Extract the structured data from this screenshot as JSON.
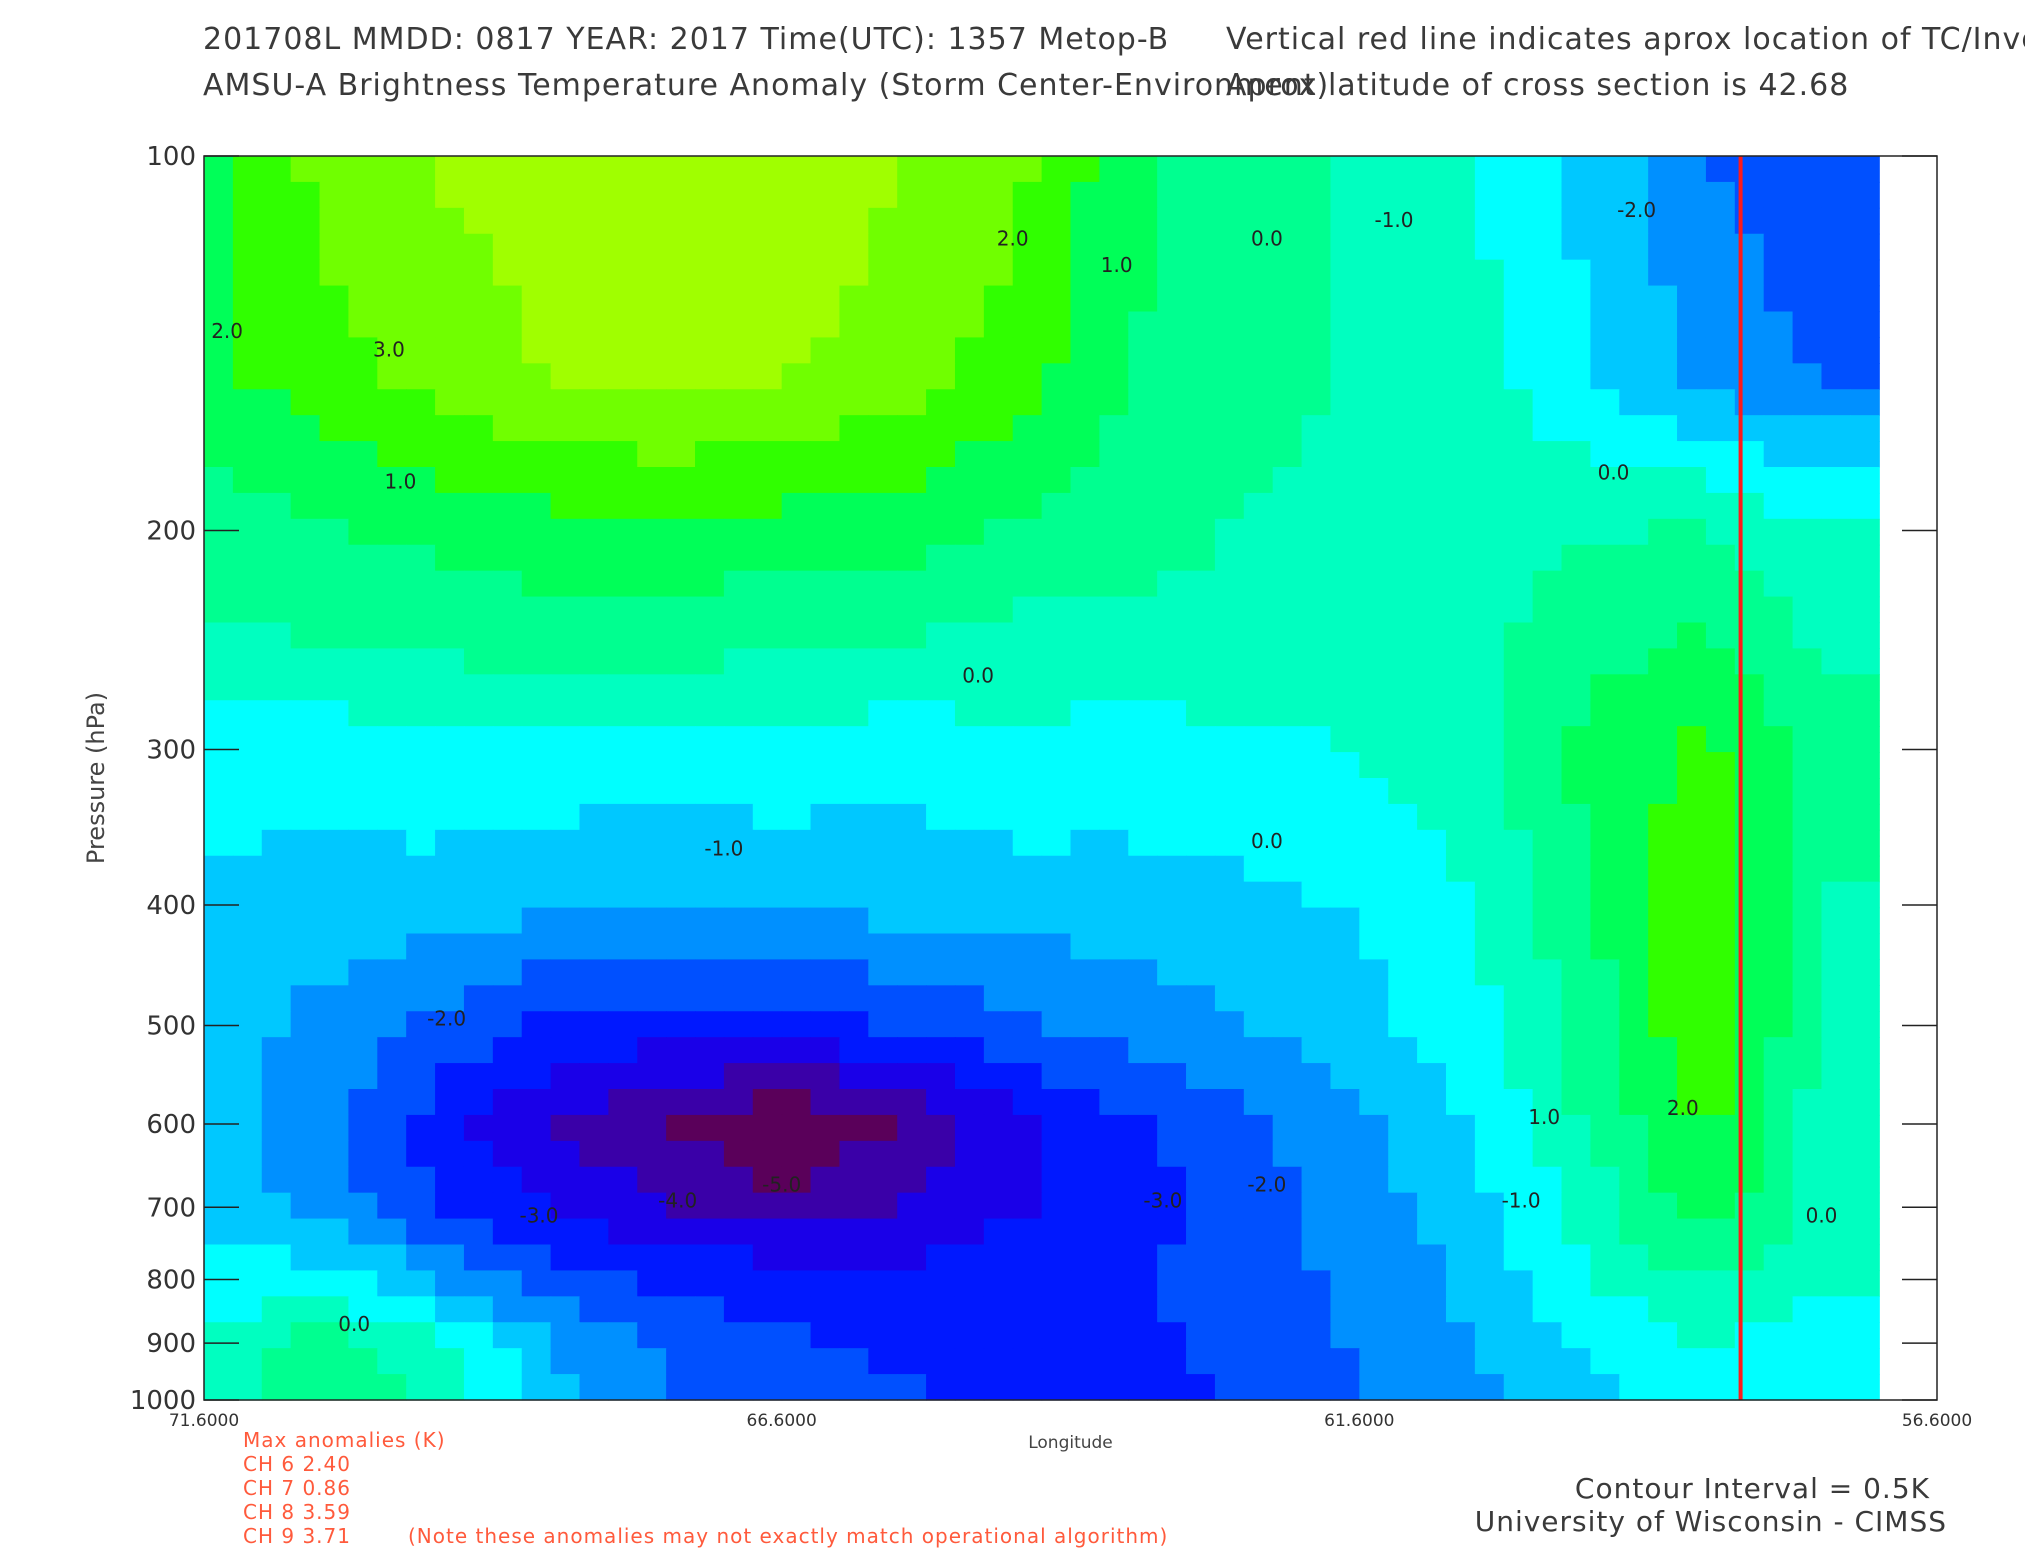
{
  "header": {
    "line1_left": "201708L  MMDD: 0817 YEAR: 2017 Time(UTC): 1357 Metop-B",
    "line2_left": "AMSU-A Brightness Temperature Anomaly (Storm Center-Environment)",
    "line1_right": "Vertical red line indicates aprox location of TC/Invest",
    "line2_right": "Aprox latitude of cross section is 42.68"
  },
  "anomalies": {
    "title": "Max anomalies (K)",
    "rows": [
      "CH 6  2.40",
      "CH 7  0.86",
      "CH 8  3.59",
      "CH 9  3.71"
    ],
    "note": "(Note these anomalies may not exactly match operational algorithm)"
  },
  "footer": {
    "contour_interval": "Contour Interval = 0.5K",
    "credit": "University of Wisconsin - CIMSS"
  },
  "colors": {
    "storm_line": "#ff1a1a",
    "label_orange": "#ff5a3c",
    "levels": [
      "#5a005a",
      "#3a00a8",
      "#1a00e8",
      "#0018ff",
      "#0050ff",
      "#0090ff",
      "#00c8ff",
      "#00ffff",
      "#00ffc0",
      "#00ff90",
      "#00ff58",
      "#30ff00",
      "#70ff00",
      "#a0ff00"
    ]
  },
  "chart_data": {
    "type": "heatmap",
    "title": "AMSU-A Brightness Temperature Anomaly (Storm Center-Environment)",
    "xlabel": "Longitude",
    "ylabel": "Pressure (hPa)",
    "xlim": [
      71.6,
      56.6
    ],
    "ylim": [
      1000,
      100
    ],
    "yscale": "log",
    "x_ticks": [
      "71.6000",
      "66.6000",
      "61.6000",
      "56.6000"
    ],
    "x_tick_values": [
      71.6,
      66.6,
      61.6,
      56.6
    ],
    "y_ticks": [
      "100",
      "200",
      "300",
      "400",
      "500",
      "600",
      "700",
      "800",
      "900",
      "1000"
    ],
    "y_tick_values": [
      100,
      200,
      300,
      400,
      500,
      600,
      700,
      800,
      900,
      1000
    ],
    "contour_interval_K": 0.5,
    "storm_longitude": 58.3,
    "data_xmin_lon": 71.6,
    "data_xmax_lon": 57.1,
    "grid": {
      "lons": [
        71.6,
        70.6,
        69.6,
        68.6,
        67.6,
        66.6,
        65.6,
        64.6,
        63.6,
        62.6,
        61.6,
        60.6,
        59.6,
        58.6,
        57.6
      ],
      "pressures": [
        100,
        150,
        200,
        250,
        300,
        400,
        500,
        600,
        700,
        800,
        900,
        1000
      ],
      "values": [
        [
          1.5,
          2.5,
          3.0,
          3.2,
          3.3,
          3.5,
          3.0,
          2.5,
          1.2,
          0.6,
          0.3,
          -0.3,
          -1.2,
          -2.2,
          -2.8
        ],
        [
          1.5,
          2.0,
          2.6,
          3.0,
          3.2,
          3.0,
          2.6,
          2.0,
          1.0,
          0.5,
          0.3,
          -0.1,
          -0.9,
          -1.8,
          -2.3
        ],
        [
          0.6,
          0.9,
          1.2,
          1.4,
          1.5,
          1.4,
          1.3,
          0.9,
          0.6,
          0.3,
          0.3,
          0.1,
          0.3,
          0.4,
          -0.2
        ],
        [
          0.2,
          0.3,
          0.4,
          0.6,
          0.5,
          0.4,
          0.3,
          0.0,
          0.1,
          0.2,
          0.3,
          0.2,
          0.8,
          1.2,
          0.3
        ],
        [
          -0.8,
          -0.7,
          -0.4,
          -0.5,
          -0.6,
          -0.5,
          -0.7,
          -0.4,
          -0.6,
          -0.5,
          -0.3,
          0.2,
          1.2,
          1.8,
          0.6
        ],
        [
          -1.0,
          -1.2,
          -1.3,
          -1.5,
          -1.6,
          -1.5,
          -1.4,
          -1.3,
          -1.2,
          -1.1,
          -0.9,
          -0.3,
          1.0,
          2.2,
          0.3
        ],
        [
          -1.2,
          -1.8,
          -2.4,
          -3.0,
          -3.2,
          -3.2,
          -2.8,
          -2.4,
          -2.0,
          -1.6,
          -1.2,
          -0.5,
          0.6,
          2.4,
          0.2
        ],
        [
          -1.3,
          -2.0,
          -3.2,
          -4.2,
          -4.8,
          -5.6,
          -4.8,
          -3.8,
          -3.0,
          -2.4,
          -1.7,
          -0.9,
          0.5,
          1.8,
          0.1
        ],
        [
          -1.2,
          -1.8,
          -2.8,
          -3.6,
          -4.2,
          -4.6,
          -4.2,
          -3.6,
          -3.2,
          -2.6,
          -1.9,
          -1.2,
          0.0,
          1.5,
          0.0
        ],
        [
          -0.8,
          -0.6,
          -1.6,
          -2.6,
          -3.0,
          -3.2,
          -3.4,
          -3.2,
          -3.0,
          -2.6,
          -2.1,
          -1.4,
          -0.3,
          0.4,
          -0.2
        ],
        [
          -0.2,
          0.6,
          0.0,
          -1.6,
          -2.4,
          -2.8,
          -3.0,
          -3.1,
          -3.1,
          -2.6,
          -2.2,
          -1.6,
          -0.9,
          -0.3,
          -0.6
        ],
        [
          0.0,
          1.0,
          0.3,
          -1.3,
          -2.2,
          -2.6,
          -2.8,
          -3.0,
          -3.4,
          -2.8,
          -2.3,
          -1.8,
          -1.2,
          -0.6,
          -0.9
        ]
      ]
    },
    "contour_labels": [
      {
        "text": "3.0",
        "lon": 70.0,
        "p": 145
      },
      {
        "text": "2.0",
        "lon": 71.4,
        "p": 140
      },
      {
        "text": "2.0",
        "lon": 64.6,
        "p": 118
      },
      {
        "text": "1.0",
        "lon": 63.7,
        "p": 124
      },
      {
        "text": "1.0",
        "lon": 69.9,
        "p": 185
      },
      {
        "text": "0.0",
        "lon": 62.4,
        "p": 118
      },
      {
        "text": "-1.0",
        "lon": 61.3,
        "p": 114
      },
      {
        "text": "-2.0",
        "lon": 59.2,
        "p": 112
      },
      {
        "text": "0.0",
        "lon": 64.9,
        "p": 265
      },
      {
        "text": "0.0",
        "lon": 59.4,
        "p": 182
      },
      {
        "text": "-1.0",
        "lon": 67.1,
        "p": 365
      },
      {
        "text": "0.0",
        "lon": 62.4,
        "p": 360
      },
      {
        "text": "-2.0",
        "lon": 69.5,
        "p": 500
      },
      {
        "text": "1.0",
        "lon": 60.0,
        "p": 600
      },
      {
        "text": "2.0",
        "lon": 58.8,
        "p": 590
      },
      {
        "text": "-3.0",
        "lon": 68.7,
        "p": 720
      },
      {
        "text": "-4.0",
        "lon": 67.5,
        "p": 700
      },
      {
        "text": "-5.0",
        "lon": 66.6,
        "p": 680
      },
      {
        "text": "-3.0",
        "lon": 63.3,
        "p": 700
      },
      {
        "text": "-2.0",
        "lon": 62.4,
        "p": 680
      },
      {
        "text": "-1.0",
        "lon": 60.2,
        "p": 700
      },
      {
        "text": "0.0",
        "lon": 57.6,
        "p": 720
      },
      {
        "text": "0.0",
        "lon": 70.3,
        "p": 880
      }
    ]
  }
}
